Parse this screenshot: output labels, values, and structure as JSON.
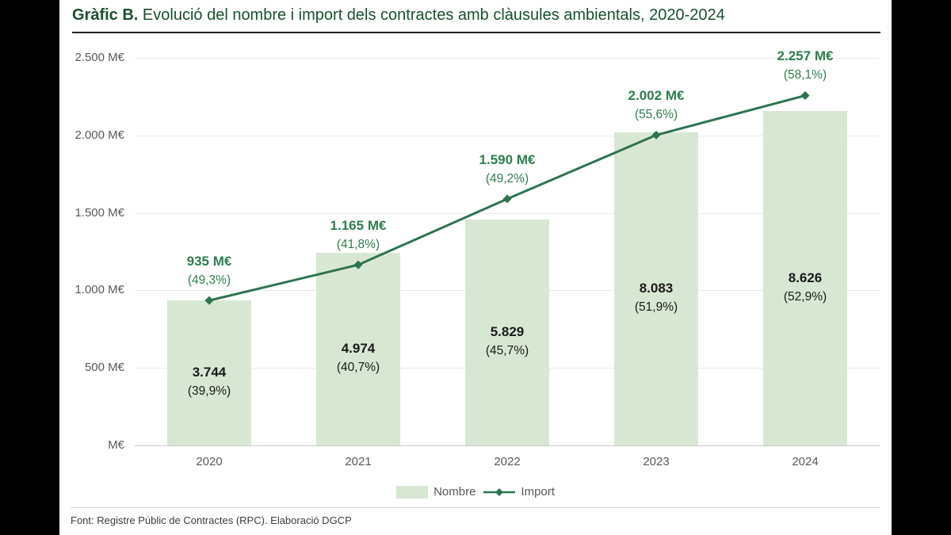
{
  "title": {
    "prefix": "Gràfic B.",
    "text": " Evolució del nombre i import dels contractes amb clàusules ambientals, 2020-2024"
  },
  "legend": {
    "nombre_label": "Nombre",
    "import_label": "Import"
  },
  "footer": {
    "source_text": "Font: Registre Públic de Contractes (RPC). Elaboració DGCP"
  },
  "colors": {
    "bar_fill": "#d8e7d4",
    "line": "#2d7350",
    "accent_text": "#2e7d4f",
    "title_text": "#19502f",
    "axis_text": "#595959",
    "value_text": "#1a1a1a"
  },
  "chart_data": {
    "type": "combo-bar-line",
    "title": "Evolució del nombre i import dels contractes amb clàusules ambientals, 2020-2024",
    "categories": [
      "2020",
      "2021",
      "2022",
      "2023",
      "2024"
    ],
    "series": [
      {
        "name": "Nombre",
        "chart_type": "bar",
        "axis": "secondary",
        "values": [
          3744,
          4974,
          5829,
          8083,
          8626
        ],
        "value_labels": [
          "3.744",
          "4.974",
          "5.829",
          "8.083",
          "8.626"
        ],
        "pct_labels": [
          "(39,9%)",
          "(40,7%)",
          "(45,7%)",
          "(51,9%)",
          "(52,9%)"
        ]
      },
      {
        "name": "Import",
        "chart_type": "line",
        "axis": "primary",
        "values": [
          935,
          1165,
          1590,
          2002,
          2257
        ],
        "value_labels": [
          "935 M€",
          "1.165 M€",
          "1.590 M€",
          "2.002 M€",
          "2.257 M€"
        ],
        "pct_labels": [
          "(49,3%)",
          "(41,8%)",
          "(49,2%)",
          "(55,6%)",
          "(58,1%)"
        ]
      }
    ],
    "primary_axis": {
      "min": 0,
      "max": 2500,
      "tick_step": 500,
      "tick_labels": [
        "M€",
        "500 M€",
        "1.000 M€",
        "1.500 M€",
        "2.000 M€",
        "2.500 M€"
      ]
    },
    "secondary_axis": {
      "min": 0,
      "max": 10000,
      "visible": false
    },
    "grid": true,
    "legend_position": "bottom"
  }
}
